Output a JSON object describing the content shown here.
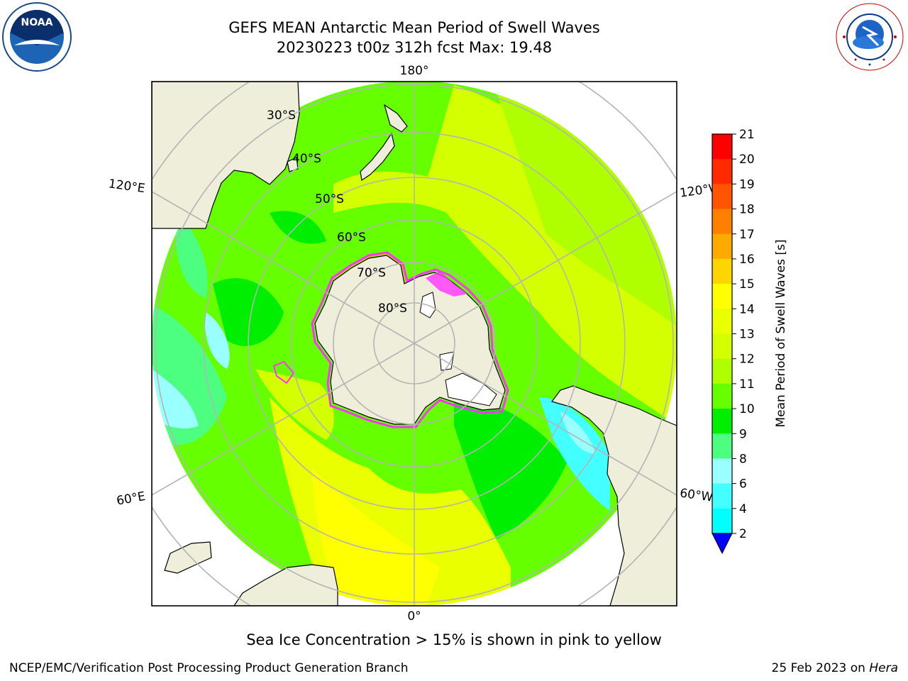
{
  "title_line1": "GEFS MEAN Antarctic Mean Period of Swell Waves",
  "title_line2": "20230223 t00z 312h fcst   Max: 19.48",
  "logos": {
    "left_name": "NOAA",
    "left_ring_text": "NATIONAL OCEANIC AND ATMOSPHERIC ADMINISTRATION · U.S. DEPARTMENT OF COMMERCE",
    "right_ring_text": "NATIONAL WEATHER SERVICE"
  },
  "map": {
    "projection": "south-polar-stereographic",
    "longitude_labels": {
      "top": "180°",
      "bottom": "0°",
      "left_upper": "120°E",
      "left_lower": "60°E",
      "right_upper": "120°W",
      "right_lower": "60°W"
    },
    "latitude_labels": [
      "30°S",
      "40°S",
      "50°S",
      "60°S",
      "70°S",
      "80°S"
    ],
    "colors": {
      "land": "#efeedb",
      "graticule": "#b4b4b4",
      "sea_ice_edge": "#ff33ff"
    }
  },
  "colorbar": {
    "label": "Mean Period of Swell Waves [s]",
    "ticks": [
      "21",
      "20",
      "19",
      "18",
      "17",
      "16",
      "15",
      "14",
      "13",
      "12",
      "11",
      "10",
      "9",
      "8",
      "6",
      "4",
      "2"
    ],
    "colors": [
      "#ff0000",
      "#ff2a00",
      "#ff5500",
      "#ff8000",
      "#ffaa00",
      "#ffd500",
      "#ffff00",
      "#eaff00",
      "#d4ff00",
      "#b0ff00",
      "#66ff00",
      "#00ee00",
      "#4cff80",
      "#99ffff",
      "#44ffff",
      "#00ffff",
      "#0080ff"
    ],
    "under_color": "#0000ff"
  },
  "caption": "Sea Ice Concentration > 15% is shown in pink to yellow",
  "footer_left": "NCEP/EMC/Verification Post Processing Product Generation Branch",
  "footer_right_prefix": "25 Feb 2023 on",
  "footer_right_host": "Hera"
}
